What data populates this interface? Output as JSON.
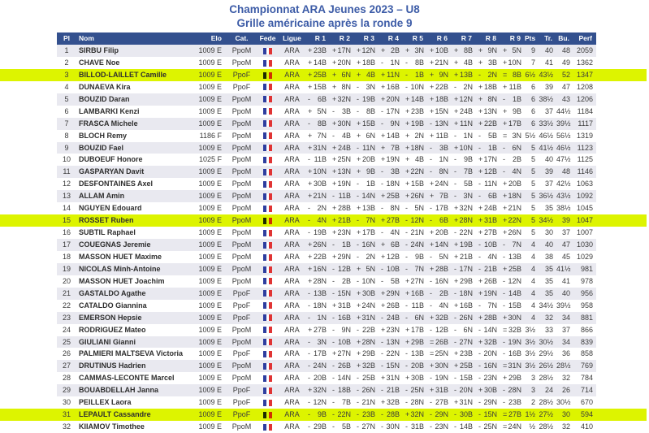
{
  "page": {
    "title": "Championnat ARA Jeunes 2023 – U8",
    "subtitle": "Grille américaine après la ronde 9"
  },
  "colors": {
    "title_blue": "#3D5CA7",
    "header_bg": "#33508E",
    "stripe": "#E9E9F0",
    "highlight": "#DDF400",
    "flag_blue": "#2E3D9F",
    "flag_red": "#E03434"
  },
  "table": {
    "columns": [
      "Pl",
      "Nom",
      "Elo",
      "Cat.",
      "Fede",
      "Ligue",
      "R 1",
      "R 2",
      "R 3",
      "R 4",
      "R 5",
      "R 6",
      "R 7",
      "R 8",
      "R 9",
      "Pts",
      "Tr.",
      "Bu.",
      "Perf"
    ],
    "fede_icon": "flag-france",
    "highlighted_places": [
      3,
      15,
      31
    ],
    "players": [
      {
        "pl": 1,
        "nom": "SIRBU Filip",
        "elo": "1009 E",
        "cat": "PpoM",
        "fede": "FRA",
        "ligue": "ARA",
        "r": [
          "+23B",
          "+17N",
          "+12N",
          "+2B",
          "+3N",
          "+10B",
          "+8B",
          "+9N",
          "+5N"
        ],
        "pts": "9",
        "tr": "40",
        "bu": "48",
        "perf": "2059"
      },
      {
        "pl": 2,
        "nom": "CHAVE Noe",
        "elo": "1009 E",
        "cat": "PpoM",
        "fede": "FRA",
        "ligue": "ARA",
        "r": [
          "+14B",
          "+20N",
          "+18B",
          "-1N",
          "-8B",
          "+21N",
          "+4B",
          "+3B",
          "+10N"
        ],
        "pts": "7",
        "tr": "41",
        "bu": "49",
        "perf": "1362"
      },
      {
        "pl": 3,
        "nom": "BILLOD-LAILLET Camille",
        "elo": "1009 E",
        "cat": "PpoF",
        "fede": "FRA",
        "ligue": "ARA",
        "r": [
          "+25B",
          "+6N",
          "+4B",
          "+11N",
          "-1B",
          "+9N",
          "+13B",
          "-2N",
          "=8B"
        ],
        "pts": "6½",
        "tr": "43½",
        "bu": "52",
        "perf": "1347"
      },
      {
        "pl": 4,
        "nom": "DUNAEVA Kira",
        "elo": "1009 E",
        "cat": "PpoF",
        "fede": "FRA",
        "ligue": "ARA",
        "r": [
          "+15B",
          "+8N",
          "-3N",
          "+16B",
          "-10N",
          "+22B",
          "-2N",
          "+18B",
          "+11B"
        ],
        "pts": "6",
        "tr": "39",
        "bu": "47",
        "perf": "1208"
      },
      {
        "pl": 5,
        "nom": "BOUZID Daran",
        "elo": "1009 E",
        "cat": "PpoM",
        "fede": "FRA",
        "ligue": "ARA",
        "r": [
          "-6B",
          "+32N",
          "-19B",
          "+20N",
          "+14B",
          "+18B",
          "+12N",
          "+8N",
          "-1B"
        ],
        "pts": "6",
        "tr": "38½",
        "bu": "43",
        "perf": "1206"
      },
      {
        "pl": 6,
        "nom": "LAMBARKI Kenzi",
        "elo": "1009 E",
        "cat": "PpoM",
        "fede": "FRA",
        "ligue": "ARA",
        "r": [
          "+5N",
          "-3B",
          "-8B",
          "-17N",
          "+23B",
          "+15N",
          "+24B",
          "+13N",
          "+9B"
        ],
        "pts": "6",
        "tr": "37",
        "bu": "44½",
        "perf": "1184"
      },
      {
        "pl": 7,
        "nom": "FRASCA Michele",
        "elo": "1009 E",
        "cat": "PpoM",
        "fede": "FRA",
        "ligue": "ARA",
        "r": [
          "-8B",
          "+30N",
          "+15B",
          "-9N",
          "+19B",
          "-13N",
          "+11N",
          "+22B",
          "+17B"
        ],
        "pts": "6",
        "tr": "33½",
        "bu": "39½",
        "perf": "1117"
      },
      {
        "pl": 8,
        "nom": "BLOCH Remy",
        "elo": "1186 F",
        "cat": "PpoM",
        "fede": "FRA",
        "ligue": "ARA",
        "r": [
          "+7N",
          "-4B",
          "+6N",
          "+14B",
          "+2N",
          "+11B",
          "-1N",
          "-5B",
          "=3N"
        ],
        "pts": "5½",
        "tr": "46½",
        "bu": "56½",
        "perf": "1319"
      },
      {
        "pl": 9,
        "nom": "BOUZID Fael",
        "elo": "1009 E",
        "cat": "PpoM",
        "fede": "FRA",
        "ligue": "ARA",
        "r": [
          "+31N",
          "+24B",
          "-11N",
          "+7B",
          "+18N",
          "-3B",
          "+10N",
          "-1B",
          "-6N"
        ],
        "pts": "5",
        "tr": "41½",
        "bu": "46½",
        "perf": "1123"
      },
      {
        "pl": 10,
        "nom": "DUBOEUF Honore",
        "elo": "1025 F",
        "cat": "PpoM",
        "fede": "FRA",
        "ligue": "ARA",
        "r": [
          "-11B",
          "+25N",
          "+20B",
          "+19N",
          "+4B",
          "-1N",
          "-9B",
          "+17N",
          "-2B"
        ],
        "pts": "5",
        "tr": "40",
        "bu": "47½",
        "perf": "1125"
      },
      {
        "pl": 11,
        "nom": "GASPARYAN Davit",
        "elo": "1009 E",
        "cat": "PpoM",
        "fede": "FRA",
        "ligue": "ARA",
        "r": [
          "+10N",
          "+13N",
          "+9B",
          "-3B",
          "+22N",
          "-8N",
          "-7B",
          "+12B",
          "-4N"
        ],
        "pts": "5",
        "tr": "39",
        "bu": "48",
        "perf": "1146"
      },
      {
        "pl": 12,
        "nom": "DESFONTAINES Axel",
        "elo": "1009 E",
        "cat": "PpoM",
        "fede": "FRA",
        "ligue": "ARA",
        "r": [
          "+30B",
          "+19N",
          "-1B",
          "-18N",
          "+15B",
          "+24N",
          "-5B",
          "-11N",
          "+20B"
        ],
        "pts": "5",
        "tr": "37",
        "bu": "42½",
        "perf": "1063"
      },
      {
        "pl": 13,
        "nom": "ALLAM Amin",
        "elo": "1009 E",
        "cat": "PpoM",
        "fede": "FRA",
        "ligue": "ARA",
        "r": [
          "+21N",
          "-11B",
          "-14N",
          "+25B",
          "+26N",
          "+7B",
          "-3N",
          "-6B",
          "+18N"
        ],
        "pts": "5",
        "tr": "36½",
        "bu": "43½",
        "perf": "1092"
      },
      {
        "pl": 14,
        "nom": "NGUYEN Edouard",
        "elo": "1009 E",
        "cat": "PpoM",
        "fede": "FRA",
        "ligue": "ARA",
        "r": [
          "-2N",
          "+28B",
          "+13B",
          "-8N",
          "-5N",
          "-17B",
          "+32N",
          "+24B",
          "+21N"
        ],
        "pts": "5",
        "tr": "35",
        "bu": "38½",
        "perf": "1045"
      },
      {
        "pl": 15,
        "nom": "ROSSET Ruben",
        "elo": "1009 E",
        "cat": "PpoM",
        "fede": "FRA",
        "ligue": "ARA",
        "r": [
          "-4N",
          "+21B",
          "-7N",
          "+27B",
          "-12N",
          "-6B",
          "+28N",
          "+31B",
          "+22N"
        ],
        "pts": "5",
        "tr": "34½",
        "bu": "39",
        "perf": "1047"
      },
      {
        "pl": 16,
        "nom": "SUBTIL Raphael",
        "elo": "1009 E",
        "cat": "PpoM",
        "fede": "FRA",
        "ligue": "ARA",
        "r": [
          "-19B",
          "+23N",
          "+17B",
          "-4N",
          "-21N",
          "+20B",
          "-22N",
          "+27B",
          "+26N"
        ],
        "pts": "5",
        "tr": "30",
        "bu": "37",
        "perf": "1007"
      },
      {
        "pl": 17,
        "nom": "COUEGNAS Jeremie",
        "elo": "1009 E",
        "cat": "PpoM",
        "fede": "FRA",
        "ligue": "ARA",
        "r": [
          "+26N",
          "-1B",
          "-16N",
          "+6B",
          "-24N",
          "+14N",
          "+19B",
          "-10B",
          "-7N"
        ],
        "pts": "4",
        "tr": "40",
        "bu": "47",
        "perf": "1030"
      },
      {
        "pl": 18,
        "nom": "MASSON HUET Maxime",
        "elo": "1009 E",
        "cat": "PpoM",
        "fede": "FRA",
        "ligue": "ARA",
        "r": [
          "+22B",
          "+29N",
          "-2N",
          "+12B",
          "-9B",
          "-5N",
          "+21B",
          "-4N",
          "-13B"
        ],
        "pts": "4",
        "tr": "38",
        "bu": "45",
        "perf": "1029"
      },
      {
        "pl": 19,
        "nom": "NICOLAS Minh-Antoine",
        "elo": "1009 E",
        "cat": "PpoM",
        "fede": "FRA",
        "ligue": "ARA",
        "r": [
          "+16N",
          "-12B",
          "+5N",
          "-10B",
          "-7N",
          "+28B",
          "-17N",
          "-21B",
          "+25B"
        ],
        "pts": "4",
        "tr": "35",
        "bu": "41½",
        "perf": "981"
      },
      {
        "pl": 20,
        "nom": "MASSON HUET Joachim",
        "elo": "1009 E",
        "cat": "PpoM",
        "fede": "FRA",
        "ligue": "ARA",
        "r": [
          "+28N",
          "-2B",
          "-10N",
          "-5B",
          "+27N",
          "-16N",
          "+29B",
          "+26B",
          "-12N"
        ],
        "pts": "4",
        "tr": "35",
        "bu": "41",
        "perf": "978"
      },
      {
        "pl": 21,
        "nom": "GASTALDO Agathe",
        "elo": "1009 E",
        "cat": "PpoF",
        "fede": "FRA",
        "ligue": "ARA",
        "r": [
          "-13B",
          "-15N",
          "+30B",
          "+29N",
          "+16B",
          "-2B",
          "-18N",
          "+19N",
          "-14B"
        ],
        "pts": "4",
        "tr": "35",
        "bu": "40",
        "perf": "956"
      },
      {
        "pl": 22,
        "nom": "CATALDO Giannina",
        "elo": "1009 E",
        "cat": "PpoF",
        "fede": "FRA",
        "ligue": "ARA",
        "r": [
          "-18N",
          "+31B",
          "+24N",
          "+26B",
          "-11B",
          "-4N",
          "+16B",
          "-7N",
          "-15B"
        ],
        "pts": "4",
        "tr": "34½",
        "bu": "39½",
        "perf": "958"
      },
      {
        "pl": 23,
        "nom": "EMERSON Hepsie",
        "elo": "1009 E",
        "cat": "PpoF",
        "fede": "FRA",
        "ligue": "ARA",
        "r": [
          "-1N",
          "-16B",
          "+31N",
          "-24B",
          "-6N",
          "+32B",
          "-26N",
          "+28B",
          "+30N"
        ],
        "pts": "4",
        "tr": "32",
        "bu": "34",
        "perf": "881"
      },
      {
        "pl": 24,
        "nom": "RODRIGUEZ Mateo",
        "elo": "1009 E",
        "cat": "PpoM",
        "fede": "FRA",
        "ligue": "ARA",
        "r": [
          "+27B",
          "-9N",
          "-22B",
          "+23N",
          "+17B",
          "-12B",
          "-6N",
          "-14N",
          "=32B"
        ],
        "pts": "3½",
        "tr": "33",
        "bu": "37",
        "perf": "866"
      },
      {
        "pl": 25,
        "nom": "GIULIANI Gianni",
        "elo": "1009 E",
        "cat": "PpoM",
        "fede": "FRA",
        "ligue": "ARA",
        "r": [
          "-3N",
          "-10B",
          "+28N",
          "-13N",
          "+29B",
          "=26B",
          "-27N",
          "+32B",
          "-19N"
        ],
        "pts": "3½",
        "tr": "30½",
        "bu": "34",
        "perf": "839"
      },
      {
        "pl": 26,
        "nom": "PALMIERI MALTSEVA Victoria",
        "elo": "1009 E",
        "cat": "PpoF",
        "fede": "FRA",
        "ligue": "ARA",
        "r": [
          "-17B",
          "+27N",
          "+29B",
          "-22N",
          "-13B",
          "=25N",
          "+23B",
          "-20N",
          "-16B"
        ],
        "pts": "3½",
        "tr": "29½",
        "bu": "36",
        "perf": "858"
      },
      {
        "pl": 27,
        "nom": "DRUTINUS Hadrien",
        "elo": "1009 E",
        "cat": "PpoM",
        "fede": "FRA",
        "ligue": "ARA",
        "r": [
          "-24N",
          "-26B",
          "+32B",
          "-15N",
          "-20B",
          "+30N",
          "+25B",
          "-16N",
          "=31N"
        ],
        "pts": "3½",
        "tr": "26½",
        "bu": "28½",
        "perf": "769"
      },
      {
        "pl": 28,
        "nom": "CAMMAS-LECONTE Marcel",
        "elo": "1009 E",
        "cat": "PpoM",
        "fede": "FRA",
        "ligue": "ARA",
        "r": [
          "-20B",
          "-14N",
          "-25B",
          "+31N",
          "+30B",
          "-19N",
          "-15B",
          "-23N",
          "+29B"
        ],
        "pts": "3",
        "tr": "28½",
        "bu": "32",
        "perf": "784"
      },
      {
        "pl": 29,
        "nom": "BOUABDELLAH Janna",
        "elo": "1009 E",
        "cat": "PpoF",
        "fede": "FRA",
        "ligue": "ARA",
        "r": [
          "+32N",
          "-18B",
          "-26N",
          "-21B",
          "-25N",
          "+31B",
          "-20N",
          "+30B",
          "-28N"
        ],
        "pts": "3",
        "tr": "24",
        "bu": "26",
        "perf": "714"
      },
      {
        "pl": 30,
        "nom": "PEILLEX Laora",
        "elo": "1009 E",
        "cat": "PpoF",
        "fede": "FRA",
        "ligue": "ARA",
        "r": [
          "-12N",
          "-7B",
          "-21N",
          "+32B",
          "-28N",
          "-27B",
          "+31N",
          "-29N",
          "-23B"
        ],
        "pts": "2",
        "tr": "28½",
        "bu": "30½",
        "perf": "670"
      },
      {
        "pl": 31,
        "nom": "LEPAULT Cassandre",
        "elo": "1009 E",
        "cat": "PpoF",
        "fede": "FRA",
        "ligue": "ARA",
        "r": [
          "-9B",
          "-22N",
          "-23B",
          "-28B",
          "+32N",
          "-29N",
          "-30B",
          "-15N",
          "=27B"
        ],
        "pts": "1½",
        "tr": "27½",
        "bu": "30",
        "perf": "594"
      },
      {
        "pl": 32,
        "nom": "KIIAMOV Timothee",
        "elo": "1009 E",
        "cat": "PpoM",
        "fede": "FRA",
        "ligue": "ARA",
        "r": [
          "-29B",
          "-5B",
          "-27N",
          "-30N",
          "-31B",
          "-23N",
          "-14B",
          "-25N",
          "=24N"
        ],
        "pts": "½",
        "tr": "28½",
        "bu": "32",
        "perf": "410"
      }
    ]
  }
}
